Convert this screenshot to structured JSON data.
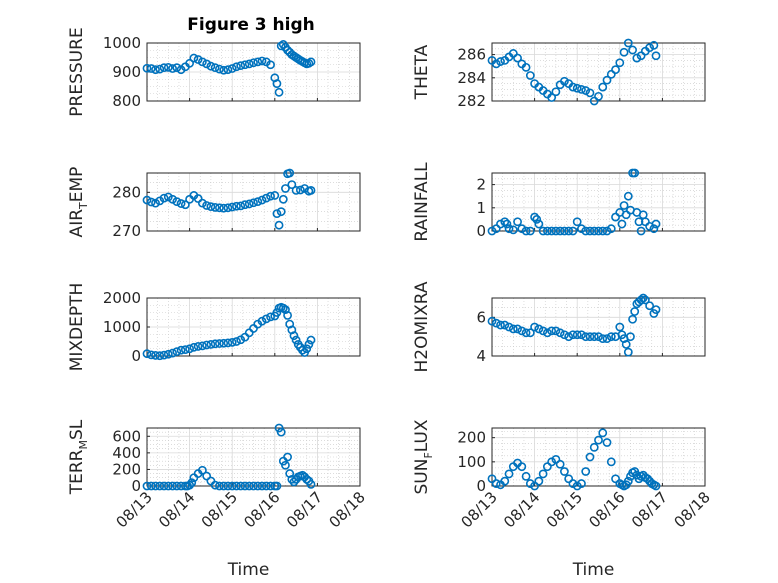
{
  "figure_title": "Figure 3 high",
  "colors": {
    "series": "#0072bd",
    "axes": "#262626",
    "grid": "#d9d9d9",
    "background": "#ffffff"
  },
  "chart_data": [
    {
      "type": "scatter",
      "ylabel": "PRESSURE",
      "ylim": [
        800,
        1000
      ],
      "yticks": [
        800,
        900,
        1000
      ],
      "xlim": [
        0,
        5
      ],
      "xticks": [
        "08/13",
        "08/14",
        "08/15",
        "08/16",
        "08/17",
        "08/18"
      ],
      "show_xticklabels": false,
      "xlabel": "",
      "grid": true,
      "minor_grid": true,
      "x": [
        0,
        0.1,
        0.2,
        0.3,
        0.4,
        0.5,
        0.6,
        0.7,
        0.8,
        0.9,
        1,
        1.1,
        1.2,
        1.3,
        1.4,
        1.5,
        1.6,
        1.7,
        1.8,
        1.9,
        2,
        2.1,
        2.2,
        2.3,
        2.4,
        2.5,
        2.6,
        2.7,
        2.8,
        2.9,
        3,
        3.05,
        3.1,
        3.15,
        3.2,
        3.25,
        3.3,
        3.35,
        3.4,
        3.45,
        3.5,
        3.55,
        3.6,
        3.65,
        3.7,
        3.75,
        3.8,
        3.85
      ],
      "y": [
        913,
        912,
        908,
        910,
        915,
        916,
        912,
        915,
        908,
        918,
        930,
        948,
        943,
        935,
        928,
        920,
        915,
        910,
        906,
        908,
        912,
        918,
        922,
        925,
        928,
        932,
        935,
        938,
        935,
        925,
        880,
        860,
        830,
        990,
        995,
        985,
        975,
        968,
        960,
        955,
        950,
        945,
        940,
        936,
        932,
        928,
        930,
        935
      ]
    },
    {
      "type": "scatter",
      "ylabel": "THETA",
      "ylim": [
        282,
        287
      ],
      "yticks": [
        282,
        284,
        286
      ],
      "xlim": [
        0,
        5
      ],
      "xticks": [
        "08/13",
        "08/14",
        "08/15",
        "08/16",
        "08/17",
        "08/18"
      ],
      "show_xticklabels": false,
      "xlabel": "",
      "grid": true,
      "minor_grid": true,
      "x": [
        0,
        0.1,
        0.2,
        0.3,
        0.4,
        0.5,
        0.6,
        0.7,
        0.8,
        0.9,
        1,
        1.1,
        1.2,
        1.3,
        1.4,
        1.5,
        1.6,
        1.7,
        1.8,
        1.9,
        2,
        2.1,
        2.2,
        2.3,
        2.4,
        2.5,
        2.6,
        2.7,
        2.8,
        2.9,
        3,
        3.1,
        3.2,
        3.3,
        3.4,
        3.5,
        3.6,
        3.7,
        3.8,
        3.85
      ],
      "y": [
        285.5,
        285.2,
        285.4,
        285.5,
        285.8,
        286.1,
        285.7,
        285.2,
        284.9,
        284.2,
        283.5,
        283.2,
        282.9,
        282.6,
        282.3,
        282.8,
        283.4,
        283.7,
        283.5,
        283.2,
        283.1,
        283.0,
        282.9,
        282.7,
        282.0,
        282.4,
        283.2,
        283.8,
        284.3,
        284.7,
        285.3,
        286.2,
        287.1,
        286.4,
        285.7,
        285.9,
        286.3,
        286.6,
        286.8,
        285.9
      ]
    },
    {
      "type": "scatter",
      "ylabel": "AIR_TEMP",
      "ylim": [
        270,
        285
      ],
      "yticks": [
        270,
        280
      ],
      "xlim": [
        0,
        5
      ],
      "xticks": [
        "08/13",
        "08/14",
        "08/15",
        "08/16",
        "08/17",
        "08/18"
      ],
      "show_xticklabels": false,
      "xlabel": "",
      "grid": true,
      "minor_grid": true,
      "x": [
        0,
        0.1,
        0.2,
        0.3,
        0.4,
        0.5,
        0.6,
        0.7,
        0.8,
        0.9,
        1,
        1.1,
        1.2,
        1.3,
        1.4,
        1.5,
        1.6,
        1.7,
        1.8,
        1.9,
        2,
        2.1,
        2.2,
        2.3,
        2.4,
        2.5,
        2.6,
        2.7,
        2.8,
        2.9,
        3,
        3.05,
        3.1,
        3.15,
        3.2,
        3.25,
        3.3,
        3.35,
        3.4,
        3.5,
        3.6,
        3.7,
        3.8,
        3.85
      ],
      "y": [
        278,
        277.5,
        277.2,
        277.8,
        278.5,
        278.8,
        278.2,
        277.6,
        277.1,
        276.8,
        278.2,
        279.2,
        278.4,
        277.2,
        276.6,
        276.3,
        276.1,
        276.0,
        275.9,
        276.0,
        276.2,
        276.4,
        276.5,
        276.8,
        277.0,
        277.3,
        277.6,
        278.0,
        278.5,
        279.0,
        279.2,
        274.5,
        271.5,
        275.0,
        278.2,
        281.0,
        284.8,
        285.0,
        282.0,
        280.5,
        280.6,
        281.0,
        280.3,
        280.5
      ]
    },
    {
      "type": "scatter",
      "ylabel": "RAINFALL",
      "ylim": [
        0,
        2.5
      ],
      "yticks": [
        0,
        1,
        2
      ],
      "xlim": [
        0,
        5
      ],
      "xticks": [
        "08/13",
        "08/14",
        "08/15",
        "08/16",
        "08/17",
        "08/18"
      ],
      "show_xticklabels": false,
      "xlabel": "",
      "grid": true,
      "minor_grid": true,
      "x": [
        0,
        0.1,
        0.2,
        0.3,
        0.35,
        0.4,
        0.5,
        0.6,
        0.7,
        0.8,
        0.9,
        1,
        1.05,
        1.1,
        1.2,
        1.3,
        1.4,
        1.5,
        1.6,
        1.7,
        1.8,
        1.9,
        2,
        2.1,
        2.2,
        2.3,
        2.4,
        2.5,
        2.6,
        2.7,
        2.8,
        2.9,
        3,
        3.05,
        3.1,
        3.15,
        3.2,
        3.25,
        3.3,
        3.35,
        3.4,
        3.45,
        3.5,
        3.55,
        3.6,
        3.7,
        3.8,
        3.85
      ],
      "y": [
        0,
        0.1,
        0.3,
        0.4,
        0.3,
        0.1,
        0.05,
        0.4,
        0.1,
        0,
        0,
        0.6,
        0.5,
        0.3,
        0,
        0,
        0,
        0,
        0,
        0,
        0,
        0,
        0.4,
        0.1,
        0,
        0,
        0,
        0,
        0,
        0,
        0.1,
        0.6,
        0.8,
        0.3,
        1.1,
        0.7,
        1.5,
        0.9,
        2.5,
        2.5,
        0.8,
        0.4,
        0,
        0.7,
        0.4,
        0.2,
        0.1,
        0.3
      ]
    },
    {
      "type": "scatter",
      "ylabel": "MIXDEPTH",
      "ylim": [
        0,
        2000
      ],
      "yticks": [
        0,
        1000,
        2000
      ],
      "xlim": [
        0,
        5
      ],
      "xticks": [
        "08/13",
        "08/14",
        "08/15",
        "08/16",
        "08/17",
        "08/18"
      ],
      "show_xticklabels": false,
      "xlabel": "",
      "grid": true,
      "minor_grid": true,
      "x": [
        0,
        0.1,
        0.2,
        0.3,
        0.4,
        0.5,
        0.6,
        0.7,
        0.8,
        0.9,
        1,
        1.1,
        1.2,
        1.3,
        1.4,
        1.5,
        1.6,
        1.7,
        1.8,
        1.9,
        2,
        2.1,
        2.2,
        2.3,
        2.4,
        2.5,
        2.6,
        2.7,
        2.8,
        2.9,
        3,
        3.05,
        3.1,
        3.15,
        3.2,
        3.25,
        3.3,
        3.35,
        3.4,
        3.45,
        3.5,
        3.55,
        3.6,
        3.65,
        3.7,
        3.75,
        3.8,
        3.85
      ],
      "y": [
        80,
        40,
        20,
        10,
        30,
        60,
        100,
        150,
        200,
        220,
        250,
        300,
        330,
        350,
        380,
        400,
        420,
        430,
        440,
        450,
        470,
        500,
        560,
        650,
        800,
        950,
        1100,
        1200,
        1280,
        1350,
        1380,
        1500,
        1650,
        1680,
        1650,
        1600,
        1400,
        1100,
        900,
        700,
        550,
        400,
        300,
        200,
        120,
        250,
        400,
        550
      ]
    },
    {
      "type": "scatter",
      "ylabel": "H2OMIXRA",
      "ylim": [
        4,
        7
      ],
      "yticks": [
        4,
        6
      ],
      "xlim": [
        0,
        5
      ],
      "xticks": [
        "08/13",
        "08/14",
        "08/15",
        "08/16",
        "08/17",
        "08/18"
      ],
      "show_xticklabels": false,
      "xlabel": "",
      "grid": true,
      "minor_grid": true,
      "x": [
        0,
        0.1,
        0.2,
        0.3,
        0.4,
        0.5,
        0.6,
        0.7,
        0.8,
        0.9,
        1,
        1.1,
        1.2,
        1.3,
        1.4,
        1.5,
        1.6,
        1.7,
        1.8,
        1.9,
        2,
        2.1,
        2.2,
        2.3,
        2.4,
        2.5,
        2.6,
        2.7,
        2.8,
        2.9,
        3,
        3.05,
        3.1,
        3.15,
        3.2,
        3.25,
        3.3,
        3.35,
        3.4,
        3.45,
        3.5,
        3.55,
        3.6,
        3.7,
        3.8,
        3.85
      ],
      "y": [
        5.8,
        5.7,
        5.6,
        5.6,
        5.5,
        5.4,
        5.4,
        5.3,
        5.2,
        5.2,
        5.5,
        5.4,
        5.3,
        5.2,
        5.3,
        5.3,
        5.2,
        5.1,
        5.0,
        5.1,
        5.1,
        5.1,
        5.0,
        5.0,
        5.0,
        5.0,
        4.9,
        4.9,
        5.0,
        5.0,
        5.5,
        5.1,
        4.9,
        4.6,
        4.2,
        5.0,
        5.9,
        6.3,
        6.7,
        6.8,
        6.9,
        7.0,
        6.9,
        6.6,
        6.2,
        6.4
      ]
    },
    {
      "type": "scatter",
      "ylabel": "TERR_MSL",
      "ylim": [
        0,
        700
      ],
      "yticks": [
        0,
        200,
        400,
        600
      ],
      "xlim": [
        0,
        5
      ],
      "xticks": [
        "08/13",
        "08/14",
        "08/15",
        "08/16",
        "08/17",
        "08/18"
      ],
      "show_xticklabels": true,
      "xlabel": "Time",
      "grid": true,
      "minor_grid": true,
      "x": [
        0,
        0.1,
        0.2,
        0.3,
        0.4,
        0.5,
        0.6,
        0.7,
        0.8,
        0.9,
        0.95,
        1,
        1.05,
        1.1,
        1.2,
        1.3,
        1.4,
        1.5,
        1.6,
        1.7,
        1.8,
        1.9,
        2,
        2.1,
        2.2,
        2.3,
        2.4,
        2.5,
        2.6,
        2.7,
        2.8,
        2.9,
        3,
        3.05,
        3.1,
        3.15,
        3.2,
        3.25,
        3.3,
        3.35,
        3.4,
        3.45,
        3.5,
        3.55,
        3.6,
        3.65,
        3.7,
        3.75,
        3.8,
        3.85
      ],
      "y": [
        0,
        0,
        0,
        0,
        0,
        0,
        0,
        0,
        0,
        0,
        0,
        10,
        40,
        100,
        150,
        190,
        120,
        60,
        10,
        0,
        0,
        0,
        0,
        0,
        0,
        0,
        0,
        0,
        0,
        0,
        0,
        0,
        0,
        0,
        700,
        650,
        300,
        250,
        350,
        150,
        80,
        50,
        80,
        110,
        120,
        130,
        110,
        80,
        60,
        20
      ]
    },
    {
      "type": "scatter",
      "ylabel": "SUN_FLUX",
      "ylim": [
        0,
        240
      ],
      "yticks": [
        0,
        100,
        200
      ],
      "xlim": [
        0,
        5
      ],
      "xticks": [
        "08/13",
        "08/14",
        "08/15",
        "08/16",
        "08/17",
        "08/18"
      ],
      "show_xticklabels": true,
      "xlabel": "Time",
      "grid": true,
      "minor_grid": true,
      "x": [
        0,
        0.1,
        0.2,
        0.3,
        0.4,
        0.5,
        0.6,
        0.7,
        0.8,
        0.9,
        1,
        1.1,
        1.2,
        1.3,
        1.4,
        1.5,
        1.6,
        1.7,
        1.8,
        1.9,
        2,
        2.1,
        2.2,
        2.3,
        2.4,
        2.5,
        2.6,
        2.7,
        2.8,
        2.9,
        3,
        3.05,
        3.1,
        3.15,
        3.2,
        3.25,
        3.3,
        3.35,
        3.4,
        3.45,
        3.5,
        3.55,
        3.6,
        3.65,
        3.7,
        3.75,
        3.8,
        3.85
      ],
      "y": [
        30,
        10,
        5,
        20,
        50,
        80,
        95,
        80,
        40,
        10,
        0,
        20,
        50,
        80,
        100,
        110,
        90,
        60,
        30,
        10,
        0,
        10,
        60,
        120,
        160,
        190,
        220,
        180,
        100,
        30,
        10,
        5,
        0,
        5,
        20,
        40,
        55,
        60,
        45,
        30,
        40,
        45,
        35,
        30,
        20,
        10,
        5,
        0
      ]
    }
  ]
}
